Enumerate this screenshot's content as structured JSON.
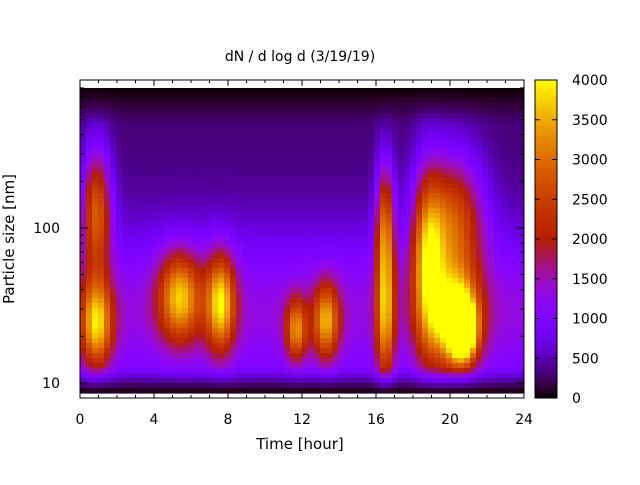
{
  "chart_data": {
    "type": "heatmap",
    "title": "dN / d log d (3/19/19)",
    "xlabel": "Time [hour]",
    "ylabel": "Particle size [nm]",
    "xlim": [
      0,
      24
    ],
    "ylim": [
      8,
      900
    ],
    "y_scale": "log",
    "x_ticks": [
      0,
      4,
      8,
      12,
      16,
      20,
      24
    ],
    "x_tick_labels": [
      "0",
      "4",
      "8",
      "12",
      "16",
      "20",
      "24"
    ],
    "y_ticks": [
      10,
      100
    ],
    "y_tick_labels": [
      "10",
      "100"
    ],
    "colorbar": {
      "min": 0,
      "max": 4000,
      "ticks": [
        0,
        500,
        1000,
        1500,
        2000,
        2500,
        3000,
        3500,
        4000
      ],
      "tick_labels": [
        "0",
        "500",
        "1000",
        "1500",
        "2000",
        "2500",
        "3000",
        "3500",
        "4000"
      ],
      "colormap": "gnuplot"
    },
    "blobs": [
      {
        "t": 0.9,
        "d": 130,
        "dt": 0.55,
        "dd": 0.28,
        "value": 2300
      },
      {
        "t": 0.9,
        "d": 24,
        "dt": 0.6,
        "dd": 0.2,
        "value": 2600
      },
      {
        "t": 5.4,
        "d": 36,
        "dt": 0.8,
        "dd": 0.2,
        "value": 2500
      },
      {
        "t": 7.6,
        "d": 33,
        "dt": 0.55,
        "dd": 0.22,
        "value": 2700
      },
      {
        "t": 11.7,
        "d": 22,
        "dt": 0.4,
        "dd": 0.14,
        "value": 2100
      },
      {
        "t": 13.3,
        "d": 25,
        "dt": 0.5,
        "dd": 0.17,
        "value": 2300
      },
      {
        "t": 16.5,
        "d": 28,
        "dt": 0.35,
        "dd": 0.32,
        "value": 2300
      },
      {
        "t": 16.5,
        "d": 110,
        "dt": 0.35,
        "dd": 0.28,
        "value": 2100
      },
      {
        "t": 18.8,
        "d": 60,
        "dt": 0.6,
        "dd": 0.4,
        "value": 2500
      },
      {
        "t": 20.3,
        "d": 25,
        "dt": 0.9,
        "dd": 0.22,
        "value": 3100
      },
      {
        "t": 20.7,
        "d": 22,
        "dt": 0.45,
        "dd": 0.12,
        "value": 3800
      },
      {
        "t": 20.2,
        "d": 110,
        "dt": 1.1,
        "dd": 0.3,
        "value": 2200
      }
    ]
  }
}
